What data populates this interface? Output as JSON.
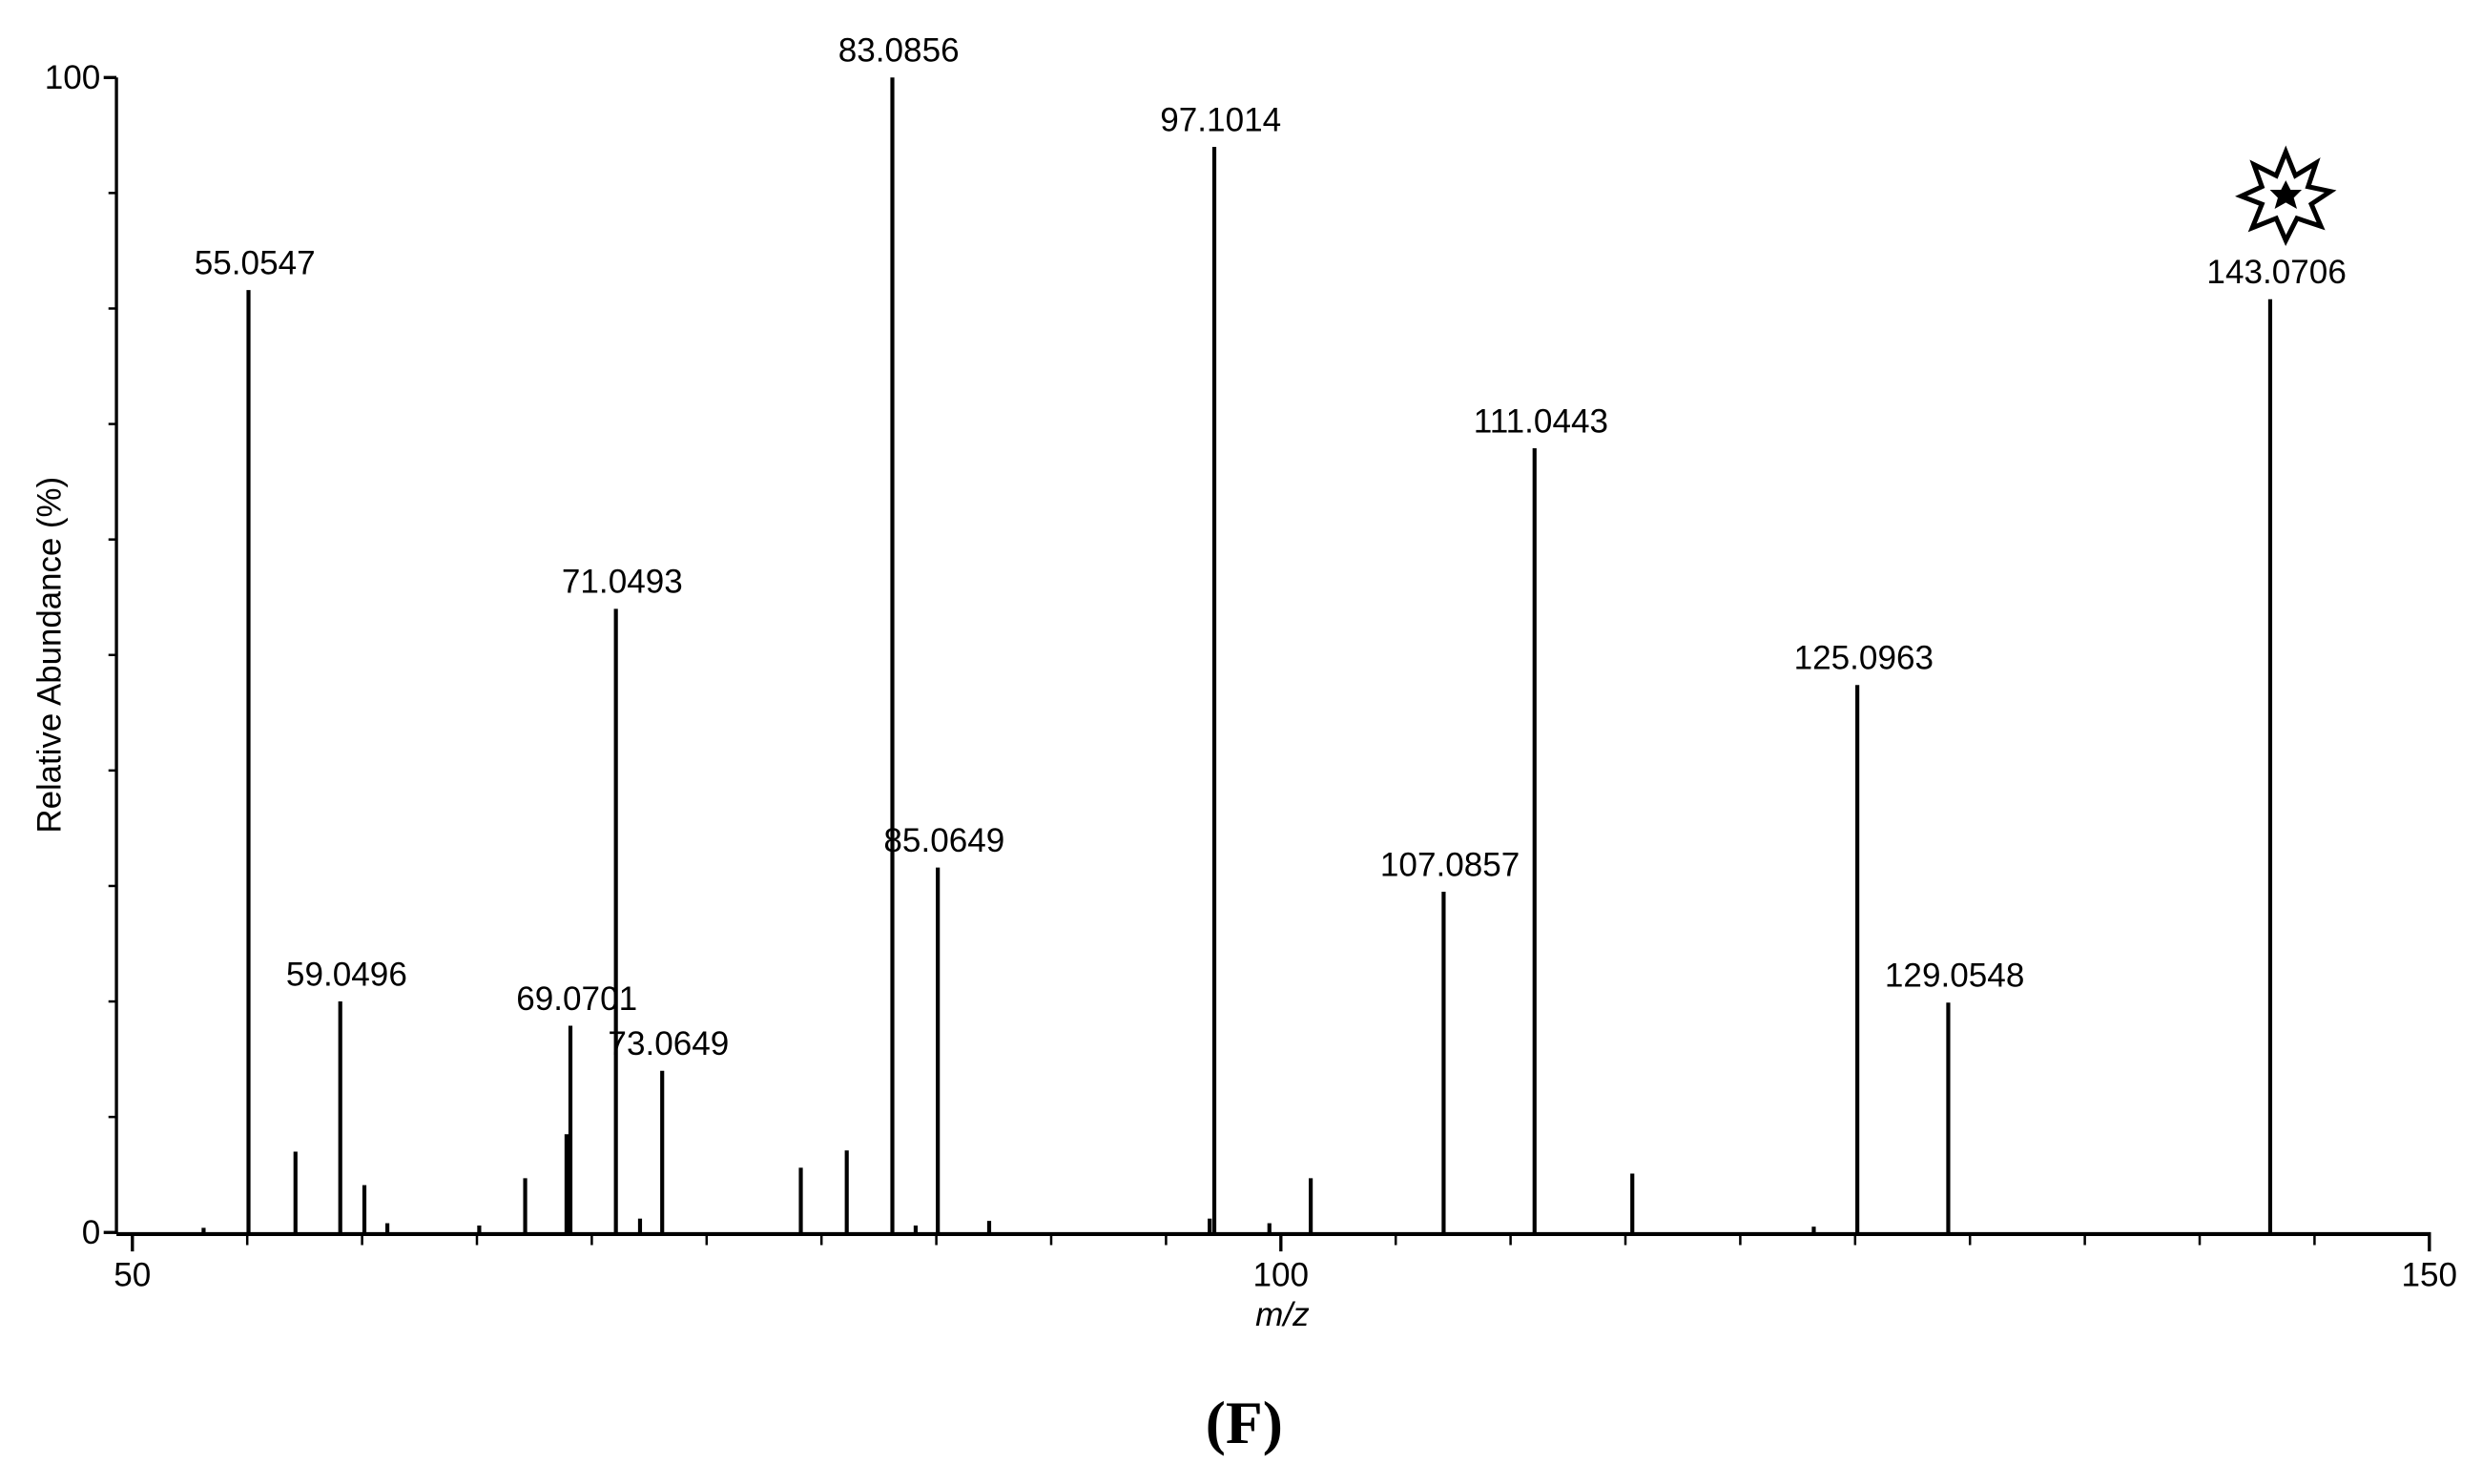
{
  "chart_data": {
    "type": "stem",
    "y_label": "Relative Abundance (%)",
    "x_label": "m/z",
    "caption": "(F)",
    "x": [
      55.0547,
      59.0496,
      69.0701,
      71.0493,
      73.0649,
      83.0856,
      85.0649,
      97.1014,
      107.0857,
      111.0443,
      125.0963,
      129.0548,
      143.0706
    ],
    "values": [
      81.6,
      20.0,
      17.9,
      54.0,
      14.0,
      100,
      31.6,
      94.0,
      29.5,
      67.9,
      47.4,
      19.9,
      80.8
    ],
    "minor_x": [
      53.1,
      57.1,
      60.1,
      61.1,
      65.1,
      67.1,
      68.9,
      72.1,
      79.1,
      81.1,
      84.1,
      87.3,
      96.9,
      99.5,
      101.3,
      115.3,
      123.2
    ],
    "minor_values": [
      0.4,
      7.0,
      4.1,
      0.8,
      0.6,
      4.7,
      8.5,
      1.2,
      5.6,
      7.1,
      0.6,
      1.0,
      1.2,
      0.8,
      4.7,
      5.1,
      0.5
    ],
    "color": "#000000",
    "xlim": [
      50,
      150
    ],
    "xticks": [
      50,
      100,
      150
    ],
    "xminorticks": [
      55,
      60,
      65,
      70,
      75,
      80,
      85,
      90,
      95,
      105,
      110,
      115,
      120,
      125,
      130,
      135,
      140,
      145
    ],
    "ylim": [
      0,
      100
    ],
    "yticks": [
      0,
      100
    ],
    "yminorticks": [
      10,
      20,
      30,
      40,
      50,
      60,
      70,
      80,
      90
    ]
  }
}
